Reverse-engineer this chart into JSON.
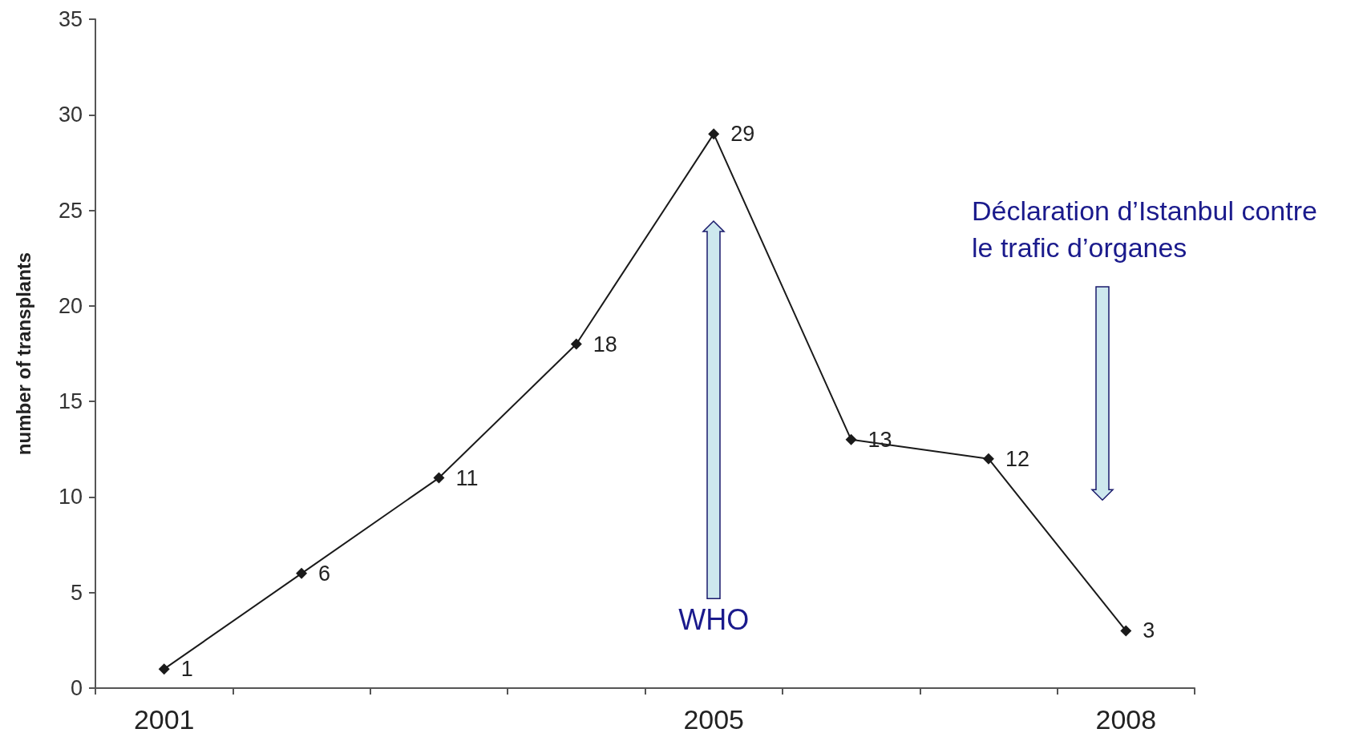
{
  "chart_data": {
    "type": "line",
    "ylabel": "number of transplants",
    "categories": [
      "2001",
      null,
      null,
      null,
      "2005",
      null,
      null,
      "2008"
    ],
    "values": [
      1,
      6,
      11,
      18,
      29,
      13,
      12,
      3
    ],
    "color": "#1a1a1a",
    "marker": "diamond",
    "line_style": "solid",
    "data_labels": true,
    "grid": false,
    "ylim": [
      0,
      35
    ],
    "yticks": [
      0,
      5,
      10,
      15,
      20,
      25,
      30,
      35
    ],
    "annotations": [
      "WHO",
      "Déclaration d’Istanbul contre le trafic d’organes"
    ]
  }
}
